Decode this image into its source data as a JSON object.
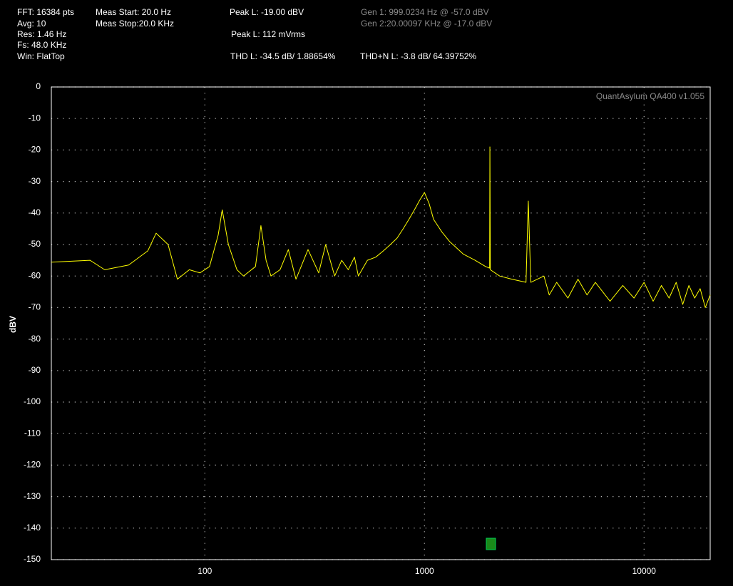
{
  "chart_data": {
    "type": "line",
    "xscale": "log",
    "grid": true,
    "color": "#ffff00",
    "ylabel": "dBV",
    "annotations": [
      "FFT: 16384 pts",
      "Avg: 10",
      "Res: 1.46 Hz",
      "Fs: 48.0 KHz",
      "Win: FlatTop",
      "Meas Start: 20.0 Hz",
      "Meas Stop:20.0 KHz",
      "Peak L: -19.00 dBV",
      "Peak L: 112 mVrms",
      "THD L: -34.5 dB/ 1.88654%",
      "THD+N L: -3.8 dB/ 64.39752%",
      "Gen 1: 999.0234 Hz @ -57.0  dBV",
      "Gen 2:20.00097 KHz @ -17.0  dBV",
      "QuantAsylum QA400 v1.055"
    ],
    "xlim": [
      20,
      20000
    ],
    "xticks": [
      100,
      1000,
      10000
    ],
    "ylim": [
      -150,
      0
    ],
    "yticks": [
      0,
      -10,
      -20,
      -30,
      -40,
      -50,
      -60,
      -70,
      -80,
      -90,
      -100,
      -110,
      -120,
      -130,
      -140,
      -150
    ],
    "x": [
      20,
      30,
      35,
      45,
      55,
      60,
      68,
      75,
      85,
      95,
      105,
      115,
      120,
      128,
      140,
      150,
      170,
      180,
      190,
      200,
      220,
      240,
      260,
      295,
      330,
      355,
      390,
      420,
      450,
      480,
      500,
      550,
      600,
      650,
      700,
      750,
      800,
      850,
      900,
      950,
      1000,
      1050,
      1100,
      1200,
      1300,
      1500,
      1700,
      1900,
      1980,
      1986,
      1995,
      2200,
      2500,
      2900,
      2970,
      3050,
      3500,
      3700,
      4000,
      4500,
      5000,
      5500,
      6000,
      7000,
      8000,
      9000,
      10000,
      11000,
      12000,
      13000,
      14000,
      15000,
      16000,
      17000,
      18000,
      19000,
      20000
    ],
    "values": [
      -55.6,
      -55,
      -58,
      -56.5,
      -52,
      -46.4,
      -50,
      -61,
      -58,
      -59,
      -57,
      -47,
      -39,
      -50,
      -58,
      -60,
      -57,
      -44,
      -55,
      -60,
      -58,
      -51.6,
      -61,
      -51.6,
      -59,
      -50,
      -60,
      -55,
      -58,
      -54,
      -60,
      -55,
      -54,
      -52,
      -50,
      -48,
      -45,
      -42,
      -39,
      -36,
      -33.5,
      -37,
      -42,
      -46,
      -49,
      -53,
      -55,
      -57,
      -57.5,
      -19,
      -58,
      -60,
      -61,
      -62,
      -36.2,
      -62,
      -60,
      -66,
      -62,
      -67,
      -61,
      -66,
      -62,
      -68,
      -63,
      -67,
      -62,
      -68,
      -63,
      -67,
      -62,
      -69,
      -63,
      -67,
      -64,
      -70,
      -66
    ]
  }
}
